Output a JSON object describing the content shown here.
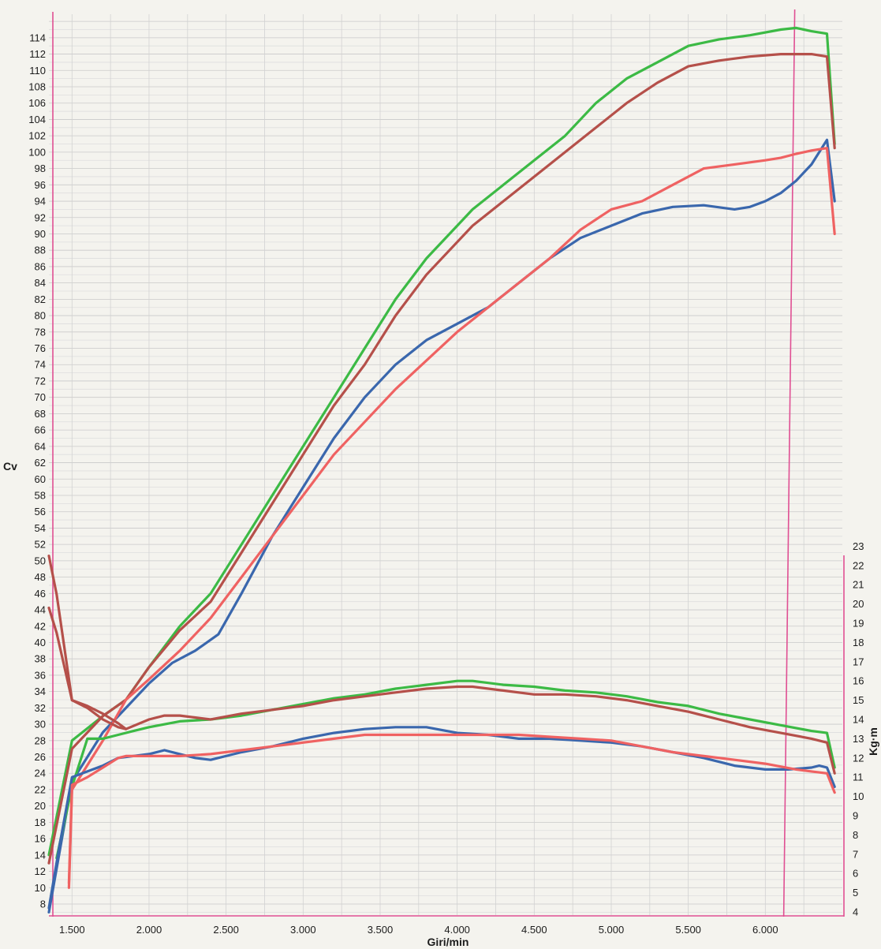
{
  "chart_data": {
    "type": "line",
    "title": "",
    "xlabel": "Giri/min",
    "ylabel_left": "Cv",
    "ylabel_right": "Kg·m",
    "xlim": [
      1350,
      6500
    ],
    "ylim_left": [
      7,
      115
    ],
    "ylim_right": [
      4,
      23
    ],
    "x_ticks": [
      1500,
      2000,
      2500,
      3000,
      3500,
      4000,
      4500,
      5000,
      5500,
      6000
    ],
    "x_tick_labels": [
      "1.500",
      "2.000",
      "2.500",
      "3.000",
      "3.500",
      "4.000",
      "4.500",
      "5.000",
      "5.500",
      "6.000"
    ],
    "y_left_ticks": [
      8,
      10,
      12,
      14,
      16,
      18,
      20,
      22,
      24,
      26,
      28,
      30,
      32,
      34,
      36,
      38,
      40,
      42,
      44,
      46,
      48,
      50,
      52,
      54,
      56,
      58,
      60,
      62,
      64,
      66,
      68,
      70,
      72,
      74,
      76,
      78,
      80,
      82,
      84,
      86,
      88,
      90,
      92,
      94,
      96,
      98,
      100,
      102,
      104,
      106,
      108,
      110,
      112,
      114
    ],
    "y_right_ticks": [
      4,
      5,
      6,
      7,
      8,
      9,
      10,
      11,
      12,
      13,
      14,
      15,
      16,
      17,
      18,
      19,
      20,
      21,
      22,
      23
    ],
    "grid": true,
    "vertical_marker_rpm": 6150,
    "series": [
      {
        "axis": "power",
        "color": "#3cba45",
        "x": [
          1350,
          1500,
          1700,
          1850,
          2000,
          2200,
          2400,
          2600,
          2800,
          3000,
          3200,
          3400,
          3600,
          3800,
          4000,
          4100,
          4300,
          4500,
          4700,
          4900,
          5100,
          5300,
          5500,
          5700,
          5900,
          6100,
          6200,
          6300,
          6400,
          6450
        ],
        "y": [
          14,
          28,
          31,
          33,
          37,
          42,
          46,
          52,
          58,
          64,
          70,
          76,
          82,
          87,
          91,
          93,
          96,
          99,
          102,
          106,
          109,
          111,
          113,
          113.8,
          114.3,
          115,
          115.2,
          114.8,
          114.5,
          101
        ]
      },
      {
        "axis": "power",
        "color": "#b5504a",
        "x": [
          1350,
          1500,
          1700,
          1850,
          2000,
          2200,
          2400,
          2600,
          2800,
          3000,
          3200,
          3400,
          3600,
          3800,
          4000,
          4100,
          4300,
          4500,
          4700,
          4900,
          5100,
          5300,
          5500,
          5700,
          5900,
          6100,
          6200,
          6300,
          6400,
          6450
        ],
        "y": [
          13,
          27,
          31,
          33,
          37,
          41.5,
          45,
          51,
          57,
          63,
          69,
          74,
          80,
          85,
          89,
          91,
          94,
          97,
          100,
          103,
          106,
          108.5,
          110.5,
          111.2,
          111.7,
          112,
          112,
          112,
          111.7,
          100.5
        ]
      },
      {
        "axis": "power",
        "color": "#3a67ad",
        "x": [
          1350,
          1500,
          1700,
          1850,
          2000,
          2150,
          2300,
          2450,
          2600,
          2800,
          3000,
          3200,
          3400,
          3600,
          3800,
          4000,
          4200,
          4400,
          4600,
          4800,
          5000,
          5200,
          5400,
          5600,
          5800,
          5900,
          6000,
          6100,
          6200,
          6300,
          6400,
          6450
        ],
        "y": [
          7,
          23,
          29,
          32,
          35,
          37.5,
          39,
          41,
          46,
          53,
          59,
          65,
          70,
          74,
          77,
          79,
          81,
          84,
          87,
          89.5,
          91,
          92.5,
          93.3,
          93.5,
          93,
          93.3,
          94,
          95,
          96.5,
          98.5,
          101.5,
          94
        ]
      },
      {
        "axis": "power",
        "color": "#ef6262",
        "x": [
          1480,
          1500,
          1700,
          1850,
          2000,
          2200,
          2400,
          2600,
          2800,
          3000,
          3200,
          3400,
          3600,
          3800,
          4000,
          4200,
          4400,
          4600,
          4800,
          5000,
          5200,
          5400,
          5600,
          5800,
          6000,
          6100,
          6200,
          6300,
          6400,
          6450
        ],
        "y": [
          10,
          22,
          28,
          33,
          35.5,
          39,
          43,
          48,
          53,
          58,
          63,
          67,
          71,
          74.5,
          78,
          81,
          84,
          87,
          90.5,
          93,
          94,
          96,
          98,
          98.5,
          99,
          99.3,
          99.8,
          100.2,
          100.5,
          90
        ]
      },
      {
        "axis": "torque",
        "color": "#3cba45",
        "x": [
          1400,
          1500,
          1600,
          1700,
          1800,
          1900,
          2000,
          2200,
          2400,
          2600,
          2800,
          3000,
          3200,
          3400,
          3600,
          3800,
          4000,
          4100,
          4300,
          4500,
          4700,
          4900,
          5100,
          5300,
          5500,
          5700,
          5900,
          6100,
          6300,
          6400,
          6450
        ],
        "y": [
          6.8,
          10.5,
          13,
          13,
          13.2,
          13.4,
          13.6,
          13.9,
          14,
          14.2,
          14.5,
          14.8,
          15.1,
          15.3,
          15.6,
          15.8,
          16,
          16,
          15.8,
          15.7,
          15.5,
          15.4,
          15.2,
          14.9,
          14.7,
          14.3,
          14,
          13.7,
          13.4,
          13.3,
          11.5
        ]
      },
      {
        "axis": "torque",
        "color": "#b5504a",
        "x": [
          1350,
          1400,
          1500,
          1600,
          1700,
          1800,
          1850,
          2000,
          2100,
          2200,
          2400,
          2600,
          2800,
          3000,
          3200,
          3400,
          3600,
          3800,
          4000,
          4100,
          4300,
          4500,
          4700,
          4900,
          5100,
          5300,
          5500,
          5700,
          5900,
          6100,
          6300,
          6400,
          6450
        ],
        "y": [
          22.5,
          20.5,
          15,
          14.6,
          14,
          13.6,
          13.5,
          14,
          14.2,
          14.2,
          14,
          14.3,
          14.5,
          14.7,
          15,
          15.2,
          15.4,
          15.6,
          15.7,
          15.7,
          15.5,
          15.3,
          15.3,
          15.2,
          15,
          14.7,
          14.4,
          14,
          13.6,
          13.3,
          13,
          12.8,
          11.2
        ]
      },
      {
        "axis": "torque",
        "color": "#b5504a",
        "x": [
          1350,
          1400,
          1500,
          1600,
          1700,
          1800,
          1850
        ],
        "y": [
          19.8,
          18.5,
          15,
          14.7,
          14.3,
          13.8,
          13.5
        ]
      },
      {
        "axis": "torque",
        "color": "#3a67ad",
        "x": [
          1350,
          1420,
          1500,
          1600,
          1700,
          1800,
          2000,
          2100,
          2200,
          2300,
          2400,
          2600,
          2800,
          3000,
          3200,
          3400,
          3600,
          3800,
          4000,
          4200,
          4400,
          4600,
          4800,
          5000,
          5200,
          5400,
          5600,
          5800,
          6000,
          6150,
          6300,
          6350,
          6400,
          6450
        ],
        "y": [
          4.2,
          7.5,
          11,
          11.3,
          11.6,
          12,
          12.2,
          12.4,
          12.2,
          12,
          11.9,
          12.3,
          12.6,
          13,
          13.3,
          13.5,
          13.6,
          13.6,
          13.3,
          13.2,
          13,
          13,
          12.9,
          12.8,
          12.6,
          12.3,
          12,
          11.6,
          11.4,
          11.4,
          11.5,
          11.6,
          11.5,
          10.5
        ]
      },
      {
        "axis": "torque",
        "color": "#ef6262",
        "x": [
          1480,
          1500,
          1600,
          1700,
          1800,
          1850,
          2000,
          2200,
          2400,
          2600,
          2800,
          3000,
          3200,
          3400,
          3600,
          3800,
          4000,
          4200,
          4400,
          4600,
          4800,
          5000,
          5200,
          5400,
          5600,
          5800,
          6000,
          6200,
          6300,
          6400,
          6450
        ],
        "y": [
          5.5,
          10.6,
          11,
          11.5,
          12,
          12.1,
          12.1,
          12.1,
          12.2,
          12.4,
          12.6,
          12.8,
          13,
          13.2,
          13.2,
          13.2,
          13.2,
          13.2,
          13.2,
          13.1,
          13,
          12.9,
          12.6,
          12.3,
          12.1,
          11.9,
          11.7,
          11.4,
          11.3,
          11.2,
          10.2
        ]
      }
    ]
  }
}
